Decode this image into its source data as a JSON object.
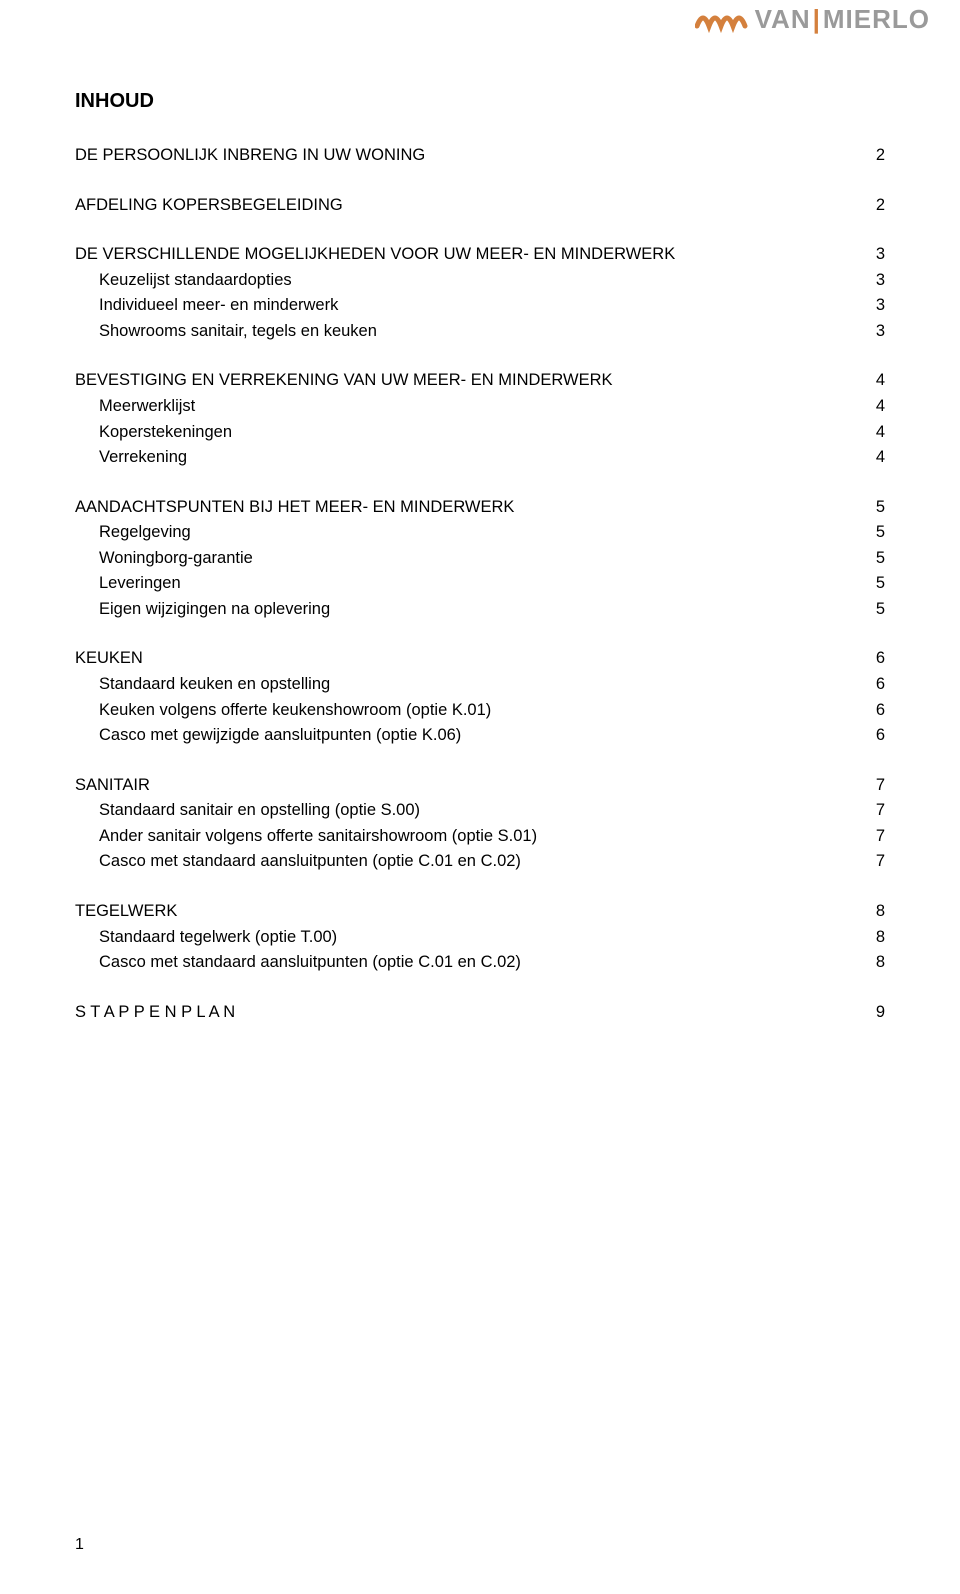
{
  "logo": {
    "brand_part1": "VAN",
    "brand_divider": "|",
    "brand_part2": "MIERLO",
    "wave_color": "#d4803d",
    "text_color": "#9a9a9a"
  },
  "title": "INHOUD",
  "page_number": "1",
  "toc": [
    {
      "level": 0,
      "label": "DE PERSOONLIJK INBRENG IN UW WONING",
      "page": "2"
    },
    {
      "spacer": true
    },
    {
      "level": 0,
      "label": "AFDELING KOPERSBEGELEIDING",
      "page": "2"
    },
    {
      "spacer": true
    },
    {
      "level": 0,
      "label": "DE VERSCHILLENDE MOGELIJKHEDEN VOOR UW MEER- EN MINDERWERK",
      "page": "3"
    },
    {
      "level": 1,
      "label": "Keuzelijst standaardopties",
      "page": "3"
    },
    {
      "level": 1,
      "label": "Individueel meer- en minderwerk",
      "page": "3"
    },
    {
      "level": 1,
      "label": "Showrooms sanitair, tegels en keuken",
      "page": "3"
    },
    {
      "spacer": true
    },
    {
      "level": 0,
      "label": "BEVESTIGING EN VERREKENING VAN UW MEER- EN MINDERWERK",
      "page": "4"
    },
    {
      "level": 1,
      "label": "Meerwerklijst",
      "page": "4"
    },
    {
      "level": 1,
      "label": "Koperstekeningen",
      "page": "4"
    },
    {
      "level": 1,
      "label": "Verrekening",
      "page": "4"
    },
    {
      "spacer": true
    },
    {
      "level": 0,
      "label": "AANDACHTSPUNTEN BIJ HET MEER- EN MINDERWERK",
      "page": "5"
    },
    {
      "level": 1,
      "label": "Regelgeving",
      "page": "5"
    },
    {
      "level": 1,
      "label": "Woningborg-garantie",
      "page": "5"
    },
    {
      "level": 1,
      "label": "Leveringen",
      "page": "5"
    },
    {
      "level": 1,
      "label": "Eigen wijzigingen na oplevering",
      "page": "5"
    },
    {
      "spacer": true
    },
    {
      "level": 0,
      "label": "KEUKEN",
      "page": "6"
    },
    {
      "level": 1,
      "label": "Standaard keuken en opstelling",
      "page": "6"
    },
    {
      "level": 1,
      "label": "Keuken volgens offerte keukenshowroom (optie K.01)",
      "page": "6"
    },
    {
      "level": 1,
      "label": "Casco met gewijzigde aansluitpunten (optie K.06)",
      "page": "6"
    },
    {
      "spacer": true
    },
    {
      "level": 0,
      "label": "SANITAIR",
      "page": "7"
    },
    {
      "level": 1,
      "label": "Standaard sanitair en opstelling (optie S.00)",
      "page": "7"
    },
    {
      "level": 1,
      "label": "Ander sanitair volgens offerte sanitairshowroom (optie S.01)",
      "page": "7"
    },
    {
      "level": 1,
      "label": "Casco met standaard aansluitpunten (optie C.01 en C.02)",
      "page": "7"
    },
    {
      "spacer": true
    },
    {
      "level": 0,
      "label": "TEGELWERK",
      "page": "8"
    },
    {
      "level": 1,
      "label": "Standaard tegelwerk (optie T.00)",
      "page": "8"
    },
    {
      "level": 1,
      "label": "Casco met standaard aansluitpunten (optie C.01 en C.02)",
      "page": "8"
    },
    {
      "spacer": true
    },
    {
      "level": 0,
      "label": "S T A P P E N P L A N",
      "page": "9"
    }
  ]
}
